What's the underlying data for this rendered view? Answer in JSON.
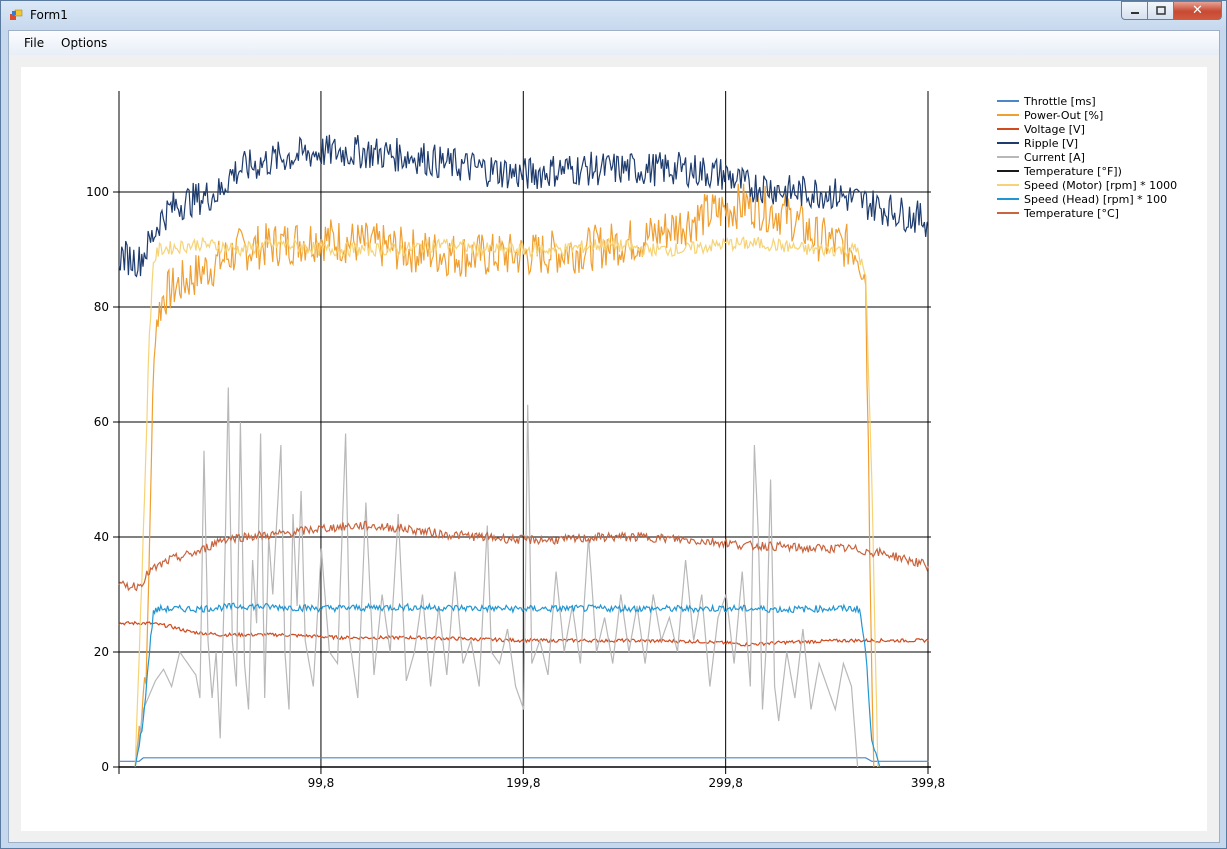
{
  "window": {
    "title": "Form1",
    "controls": {
      "minimize": "minimize",
      "maximize": "maximize",
      "close": "close"
    }
  },
  "menu": {
    "items": [
      "File",
      "Options"
    ]
  },
  "chart_data": {
    "type": "line",
    "x_ticks": [
      "99,8",
      "199,8",
      "299,8",
      "399,8"
    ],
    "y_ticks": [
      "0",
      "20",
      "40",
      "60",
      "80",
      "100"
    ],
    "xlim": [
      0,
      406
    ],
    "ylim": [
      0,
      117
    ],
    "grid": true,
    "legend_position": "top-right",
    "series": [
      {
        "name": "Throttle [ms]",
        "color": "#4a86c8",
        "points": [
          [
            0,
            1
          ],
          [
            8,
            1
          ],
          [
            10,
            1
          ],
          [
            12,
            1.6
          ],
          [
            20,
            1.6
          ],
          [
            100,
            1.6
          ],
          [
            200,
            1.6
          ],
          [
            300,
            1.6
          ],
          [
            355,
            1.6
          ],
          [
            369,
            1.6
          ],
          [
            372,
            1
          ],
          [
            400,
            1
          ]
        ]
      },
      {
        "name": "Power-Out [%]",
        "color": "#f0a032",
        "points": [
          [
            8,
            0
          ],
          [
            14,
            20
          ],
          [
            16,
            55
          ],
          [
            18,
            77
          ],
          [
            22,
            82
          ],
          [
            30,
            84
          ],
          [
            40,
            86
          ],
          [
            50,
            88
          ],
          [
            60,
            90
          ],
          [
            80,
            91
          ],
          [
            100,
            92
          ],
          [
            140,
            90
          ],
          [
            170,
            89
          ],
          [
            200,
            89
          ],
          [
            230,
            90
          ],
          [
            260,
            92
          ],
          [
            290,
            96
          ],
          [
            310,
            98
          ],
          [
            330,
            96
          ],
          [
            345,
            92
          ],
          [
            365,
            90
          ],
          [
            369,
            85
          ],
          [
            371,
            40
          ],
          [
            373,
            0
          ]
        ]
      },
      {
        "name": "Voltage [V]",
        "color": "#d04a1e",
        "points": [
          [
            0,
            25
          ],
          [
            15,
            25
          ],
          [
            25,
            24.5
          ],
          [
            35,
            23.5
          ],
          [
            50,
            23
          ],
          [
            80,
            23
          ],
          [
            110,
            22.5
          ],
          [
            150,
            22.5
          ],
          [
            200,
            22
          ],
          [
            250,
            22
          ],
          [
            290,
            21.8
          ],
          [
            310,
            21.3
          ],
          [
            330,
            21.7
          ],
          [
            360,
            22
          ],
          [
            400,
            22
          ]
        ]
      },
      {
        "name": "Ripple [V]",
        "color": "#1f3c6e",
        "points": [
          [
            0,
            89
          ],
          [
            10,
            88
          ],
          [
            15,
            91
          ],
          [
            20,
            95
          ],
          [
            25,
            97
          ],
          [
            30,
            98
          ],
          [
            40,
            99
          ],
          [
            50,
            100
          ],
          [
            55,
            103
          ],
          [
            60,
            104
          ],
          [
            70,
            105
          ],
          [
            80,
            106
          ],
          [
            100,
            107
          ],
          [
            120,
            107
          ],
          [
            150,
            106
          ],
          [
            160,
            105
          ],
          [
            180,
            104
          ],
          [
            200,
            103
          ],
          [
            220,
            104
          ],
          [
            240,
            104
          ],
          [
            260,
            104
          ],
          [
            280,
            104
          ],
          [
            300,
            103
          ],
          [
            310,
            101
          ],
          [
            320,
            101
          ],
          [
            330,
            100
          ],
          [
            350,
            100
          ],
          [
            360,
            99
          ],
          [
            380,
            97
          ],
          [
            390,
            96
          ],
          [
            400,
            95
          ]
        ]
      },
      {
        "name": "Current [A]",
        "color": "#b8b8b8",
        "points": [
          [
            8,
            0
          ],
          [
            12,
            10
          ],
          [
            18,
            15
          ],
          [
            22,
            17
          ],
          [
            26,
            14
          ],
          [
            30,
            20
          ],
          [
            34,
            18
          ],
          [
            38,
            16
          ],
          [
            40,
            12
          ],
          [
            42,
            55
          ],
          [
            44,
            22
          ],
          [
            46,
            12
          ],
          [
            48,
            20
          ],
          [
            50,
            5
          ],
          [
            52,
            30
          ],
          [
            54,
            66
          ],
          [
            56,
            22
          ],
          [
            58,
            14
          ],
          [
            60,
            60
          ],
          [
            62,
            18
          ],
          [
            64,
            10
          ],
          [
            66,
            36
          ],
          [
            68,
            25
          ],
          [
            70,
            58
          ],
          [
            72,
            12
          ],
          [
            74,
            40
          ],
          [
            76,
            30
          ],
          [
            80,
            56
          ],
          [
            82,
            20
          ],
          [
            84,
            10
          ],
          [
            86,
            44
          ],
          [
            88,
            28
          ],
          [
            90,
            48
          ],
          [
            92,
            22
          ],
          [
            96,
            14
          ],
          [
            100,
            38
          ],
          [
            104,
            20
          ],
          [
            108,
            18
          ],
          [
            112,
            58
          ],
          [
            114,
            22
          ],
          [
            118,
            12
          ],
          [
            122,
            46
          ],
          [
            126,
            16
          ],
          [
            130,
            30
          ],
          [
            134,
            20
          ],
          [
            138,
            44
          ],
          [
            142,
            15
          ],
          [
            146,
            20
          ],
          [
            150,
            30
          ],
          [
            154,
            14
          ],
          [
            158,
            28
          ],
          [
            162,
            16
          ],
          [
            166,
            34
          ],
          [
            170,
            18
          ],
          [
            174,
            22
          ],
          [
            178,
            14
          ],
          [
            182,
            42
          ],
          [
            184,
            20
          ],
          [
            188,
            18
          ],
          [
            192,
            24
          ],
          [
            196,
            14
          ],
          [
            200,
            10
          ],
          [
            202,
            63
          ],
          [
            204,
            18
          ],
          [
            208,
            22
          ],
          [
            212,
            16
          ],
          [
            216,
            34
          ],
          [
            220,
            20
          ],
          [
            224,
            28
          ],
          [
            228,
            18
          ],
          [
            232,
            40
          ],
          [
            236,
            20
          ],
          [
            240,
            26
          ],
          [
            244,
            18
          ],
          [
            248,
            30
          ],
          [
            252,
            20
          ],
          [
            256,
            28
          ],
          [
            260,
            18
          ],
          [
            264,
            30
          ],
          [
            268,
            22
          ],
          [
            272,
            26
          ],
          [
            276,
            20
          ],
          [
            280,
            36
          ],
          [
            284,
            22
          ],
          [
            288,
            30
          ],
          [
            292,
            14
          ],
          [
            296,
            26
          ],
          [
            300,
            30
          ],
          [
            304,
            18
          ],
          [
            308,
            34
          ],
          [
            312,
            14
          ],
          [
            314,
            56
          ],
          [
            316,
            40
          ],
          [
            318,
            10
          ],
          [
            320,
            22
          ],
          [
            322,
            50
          ],
          [
            324,
            14
          ],
          [
            326,
            8
          ],
          [
            330,
            20
          ],
          [
            334,
            12
          ],
          [
            338,
            24
          ],
          [
            342,
            10
          ],
          [
            346,
            18
          ],
          [
            350,
            14
          ],
          [
            354,
            10
          ],
          [
            358,
            18
          ],
          [
            362,
            14
          ],
          [
            365,
            0
          ]
        ]
      },
      {
        "name": "Temperature [°F])",
        "color": "#1a1a1a",
        "points": []
      },
      {
        "name": "Speed (Motor) [rpm] * 1000",
        "color": "#f5d376",
        "points": [
          [
            8,
            0
          ],
          [
            12,
            40
          ],
          [
            15,
            75
          ],
          [
            17,
            88
          ],
          [
            20,
            90
          ],
          [
            40,
            91
          ],
          [
            60,
            90
          ],
          [
            80,
            91
          ],
          [
            100,
            90
          ],
          [
            120,
            90
          ],
          [
            140,
            90
          ],
          [
            160,
            91
          ],
          [
            180,
            90
          ],
          [
            200,
            90
          ],
          [
            220,
            90
          ],
          [
            240,
            91
          ],
          [
            260,
            90
          ],
          [
            280,
            90
          ],
          [
            300,
            91
          ],
          [
            320,
            91
          ],
          [
            340,
            90
          ],
          [
            355,
            90
          ],
          [
            365,
            90
          ],
          [
            369,
            85
          ],
          [
            372,
            50
          ],
          [
            375,
            0
          ]
        ]
      },
      {
        "name": "Speed (Head) [rpm] * 100",
        "color": "#2296d2",
        "points": [
          [
            8,
            0
          ],
          [
            12,
            8
          ],
          [
            15,
            20
          ],
          [
            17,
            27
          ],
          [
            20,
            27.5
          ],
          [
            40,
            27.5
          ],
          [
            60,
            28
          ],
          [
            80,
            27.8
          ],
          [
            100,
            27.6
          ],
          [
            140,
            27.8
          ],
          [
            180,
            27.6
          ],
          [
            200,
            27.5
          ],
          [
            240,
            27.6
          ],
          [
            280,
            27.5
          ],
          [
            300,
            27.6
          ],
          [
            330,
            27.4
          ],
          [
            355,
            27.6
          ],
          [
            366,
            27.5
          ],
          [
            369,
            20
          ],
          [
            372,
            5
          ],
          [
            376,
            0
          ]
        ]
      },
      {
        "name": "Temperature [°C]",
        "color": "#c8643e",
        "points": [
          [
            0,
            31.5
          ],
          [
            10,
            31.5
          ],
          [
            15,
            34
          ],
          [
            25,
            36
          ],
          [
            40,
            37.5
          ],
          [
            50,
            39.5
          ],
          [
            60,
            40
          ],
          [
            80,
            40.5
          ],
          [
            100,
            41.5
          ],
          [
            120,
            42
          ],
          [
            140,
            41.5
          ],
          [
            160,
            40.5
          ],
          [
            180,
            40
          ],
          [
            200,
            39.5
          ],
          [
            220,
            39.5
          ],
          [
            240,
            40
          ],
          [
            260,
            40
          ],
          [
            280,
            39.5
          ],
          [
            300,
            39
          ],
          [
            310,
            38.5
          ],
          [
            320,
            38.5
          ],
          [
            340,
            38
          ],
          [
            360,
            38
          ],
          [
            370,
            37.5
          ],
          [
            380,
            37
          ],
          [
            390,
            36
          ],
          [
            400,
            35
          ]
        ]
      }
    ]
  }
}
